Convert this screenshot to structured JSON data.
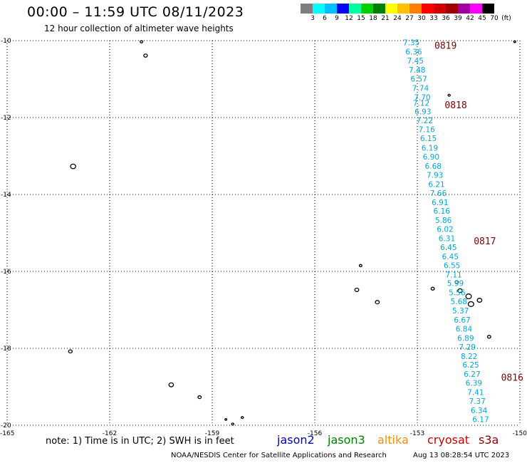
{
  "header": {
    "title": "00:00 – 11:59 UTC 08/11/2023",
    "subtitle": "12 hour collection of altimeter wave heights"
  },
  "colorbar": {
    "swatches": [
      "#7f7f7f",
      "#00ffff",
      "#00bfff",
      "#0000ff",
      "#00ffa0",
      "#00d000",
      "#008000",
      "#ffff00",
      "#ffc000",
      "#ff8000",
      "#ff0000",
      "#d00000",
      "#a00000",
      "#a000a0",
      "#ff00ff",
      "#000000"
    ],
    "labels": [
      "3",
      "6",
      "9",
      "12",
      "15",
      "18",
      "21",
      "24",
      "27",
      "30",
      "33",
      "36",
      "39",
      "42",
      "45",
      "70",
      "(ft)"
    ]
  },
  "map": {
    "lon_range": [
      -165,
      -150
    ],
    "lat_range": [
      -20,
      -10
    ],
    "lat_ticks": [
      "-10",
      "-12",
      "-14",
      "-16",
      "-18",
      "-20"
    ],
    "lon_ticks": [
      "-165",
      "-162",
      "-159",
      "-156",
      "-153",
      "-150"
    ],
    "grid": "dotted",
    "observation_color": "#00a8d8",
    "pass_label_color": "#800000",
    "observations": [
      {
        "v": "7.35",
        "lat": -10.05,
        "lon": -153.42
      },
      {
        "v": "6.36",
        "lat": -10.29,
        "lon": -153.35
      },
      {
        "v": "7.45",
        "lat": -10.52,
        "lon": -153.3
      },
      {
        "v": "7.48",
        "lat": -10.76,
        "lon": -153.25
      },
      {
        "v": "6.57",
        "lat": -10.99,
        "lon": -153.2
      },
      {
        "v": "7.74",
        "lat": -11.23,
        "lon": -153.15
      },
      {
        "v": "7.70",
        "lat": -11.47,
        "lon": -153.1
      },
      {
        "v": "7.12",
        "lat": -11.62,
        "lon": -153.13
      },
      {
        "v": "6.93",
        "lat": -11.84,
        "lon": -153.08
      },
      {
        "v": "7.22",
        "lat": -12.07,
        "lon": -153.03
      },
      {
        "v": "7.16",
        "lat": -12.31,
        "lon": -152.97
      },
      {
        "v": "6.15",
        "lat": -12.54,
        "lon": -152.92
      },
      {
        "v": "6.19",
        "lat": -12.79,
        "lon": -152.88
      },
      {
        "v": "6.90",
        "lat": -13.02,
        "lon": -152.84
      },
      {
        "v": "6.68",
        "lat": -13.26,
        "lon": -152.78
      },
      {
        "v": "7.93",
        "lat": -13.49,
        "lon": -152.73
      },
      {
        "v": "6.21",
        "lat": -13.73,
        "lon": -152.68
      },
      {
        "v": "7.66",
        "lat": -13.96,
        "lon": -152.63
      },
      {
        "v": "6.91",
        "lat": -14.2,
        "lon": -152.58
      },
      {
        "v": "6.16",
        "lat": -14.43,
        "lon": -152.53
      },
      {
        "v": "5.86",
        "lat": -14.67,
        "lon": -152.48
      },
      {
        "v": "6.02",
        "lat": -14.9,
        "lon": -152.43
      },
      {
        "v": "6.31",
        "lat": -15.14,
        "lon": -152.38
      },
      {
        "v": "6.45",
        "lat": -15.37,
        "lon": -152.33
      },
      {
        "v": "6.45",
        "lat": -15.61,
        "lon": -152.28
      },
      {
        "v": "6.55",
        "lat": -15.84,
        "lon": -152.23
      },
      {
        "v": "7.11",
        "lat": -16.08,
        "lon": -152.18
      },
      {
        "v": "5.99",
        "lat": -16.31,
        "lon": -152.13
      },
      {
        "v": "5.56",
        "lat": -16.55,
        "lon": -152.08
      },
      {
        "v": "5.68",
        "lat": -16.78,
        "lon": -152.03
      },
      {
        "v": "5.37",
        "lat": -17.02,
        "lon": -151.98
      },
      {
        "v": "6.67",
        "lat": -17.26,
        "lon": -151.93
      },
      {
        "v": "6.84",
        "lat": -17.49,
        "lon": -151.88
      },
      {
        "v": "6.89",
        "lat": -17.73,
        "lon": -151.83
      },
      {
        "v": "7.29",
        "lat": -17.96,
        "lon": -151.78
      },
      {
        "v": "8.22",
        "lat": -18.2,
        "lon": -151.73
      },
      {
        "v": "6.25",
        "lat": -18.43,
        "lon": -151.68
      },
      {
        "v": "6.27",
        "lat": -18.67,
        "lon": -151.64
      },
      {
        "v": "6.39",
        "lat": -18.9,
        "lon": -151.59
      },
      {
        "v": "7.41",
        "lat": -19.14,
        "lon": -151.54
      },
      {
        "v": "7.37",
        "lat": -19.37,
        "lon": -151.49
      },
      {
        "v": "6.34",
        "lat": -19.61,
        "lon": -151.44
      },
      {
        "v": "6.17",
        "lat": -19.84,
        "lon": -151.39
      }
    ],
    "pass_labels": [
      {
        "text": "0819",
        "lat": -10.12,
        "lon": -152.5
      },
      {
        "text": "0818",
        "lat": -11.67,
        "lon": -152.2
      },
      {
        "text": "0817",
        "lat": -15.2,
        "lon": -151.35
      },
      {
        "text": "0816",
        "lat": -18.75,
        "lon": -150.55
      }
    ],
    "islands": [
      {
        "lat": -10.03,
        "lon": -161.07,
        "r": 1.6
      },
      {
        "lat": -10.39,
        "lon": -160.95,
        "r": 2.2
      },
      {
        "lat": -13.27,
        "lon": -163.07,
        "r": 3.2
      },
      {
        "lat": -15.85,
        "lon": -154.66,
        "r": 1.6
      },
      {
        "lat": -16.48,
        "lon": -154.77,
        "r": 2.4
      },
      {
        "lat": -16.8,
        "lon": -154.17,
        "r": 2.4
      },
      {
        "lat": -16.45,
        "lon": -152.55,
        "r": 2.0
      },
      {
        "lat": -16.28,
        "lon": -151.85,
        "r": 2.0
      },
      {
        "lat": -16.5,
        "lon": -151.75,
        "r": 2.6
      },
      {
        "lat": -16.65,
        "lon": -151.5,
        "r": 3.4
      },
      {
        "lat": -16.85,
        "lon": -151.43,
        "r": 3.4
      },
      {
        "lat": -16.75,
        "lon": -151.18,
        "r": 2.8
      },
      {
        "lat": -17.7,
        "lon": -150.9,
        "r": 2.0
      },
      {
        "lat": -18.08,
        "lon": -163.15,
        "r": 2.2
      },
      {
        "lat": -18.95,
        "lon": -160.2,
        "r": 2.8
      },
      {
        "lat": -19.27,
        "lon": -159.37,
        "r": 2.0
      },
      {
        "lat": -19.85,
        "lon": -158.6,
        "r": 1.2
      },
      {
        "lat": -19.97,
        "lon": -158.4,
        "r": 1.4
      },
      {
        "lat": -19.8,
        "lon": -158.12,
        "r": 1.4
      },
      {
        "lat": -10.03,
        "lon": -150.15,
        "r": 1.2
      },
      {
        "lat": -11.42,
        "lon": -152.07,
        "r": 1.4
      }
    ]
  },
  "footer": {
    "note": "note:  1) Time is in UTC;  2) SWH is in feet",
    "satellites": [
      {
        "name": "jason2",
        "color": "#0000cc"
      },
      {
        "name": "jason3",
        "color": "#008000"
      },
      {
        "name": "altika",
        "color": "#ff8c00"
      },
      {
        "name": "cryosat",
        "color": "#cc0000"
      },
      {
        "name": "s3a",
        "color": "#8b0000"
      }
    ],
    "credit": "NOAA/NESDIS Center for Satellite Applications and Research",
    "timestamp": "Aug 13 08:28:54 UTC 2023"
  }
}
